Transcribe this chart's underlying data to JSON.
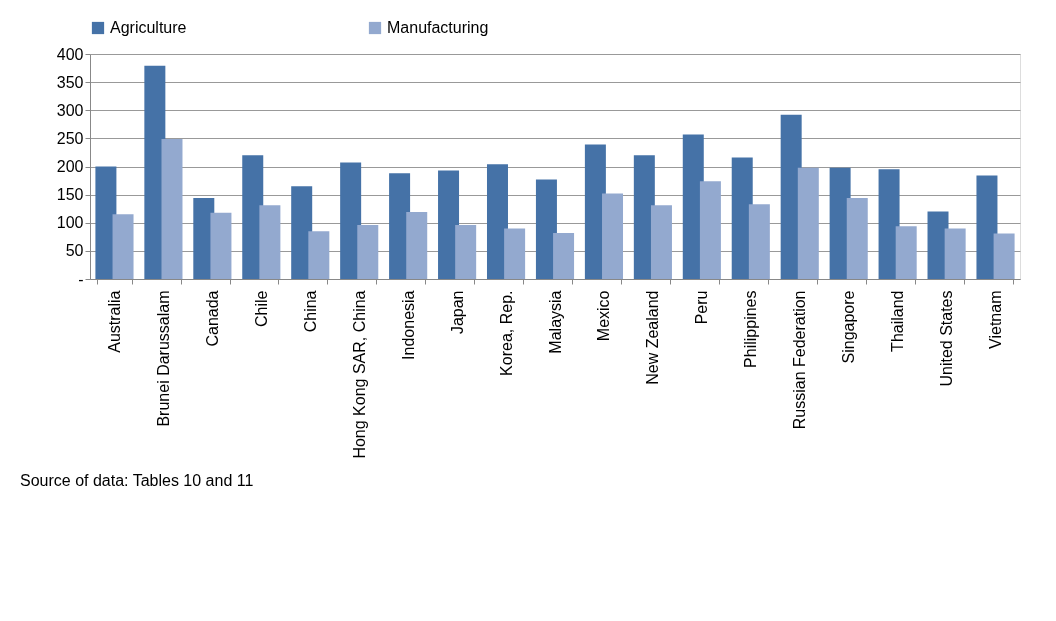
{
  "chart_data": {
    "type": "bar",
    "categories": [
      "Australia",
      "Brunei Darussalam",
      "Canada",
      "Chile",
      "China",
      "Hong Kong SAR, China",
      "Indonesia",
      "Japan",
      "Korea, Rep.",
      "Malaysia",
      "Mexico",
      "New Zealand",
      "Peru",
      "Philippines",
      "Russian Federation",
      "Singapore",
      "Thailand",
      "United States",
      "Vietnam"
    ],
    "series": [
      {
        "name": "Agriculture",
        "color": "#4572a7",
        "values": [
          200,
          379,
          144,
          220,
          165,
          207,
          188,
          193,
          204,
          177,
          239,
          220,
          257,
          216,
          292,
          198,
          195,
          120,
          184
        ]
      },
      {
        "name": "Manufacturing",
        "color": "#93a9cf",
        "values": [
          115,
          249,
          118,
          131,
          85,
          96,
          119,
          96,
          90,
          82,
          152,
          131,
          174,
          133,
          198,
          144,
          94,
          90,
          81
        ]
      }
    ],
    "ylim": [
      0,
      400
    ],
    "yticks": [
      {
        "value": 0,
        "label": "-"
      },
      50,
      100,
      150,
      200,
      250,
      300,
      350,
      400
    ],
    "grid": "y",
    "legend": "top",
    "annotations": [
      "Source of data:  Tables 10 and 11"
    ]
  }
}
